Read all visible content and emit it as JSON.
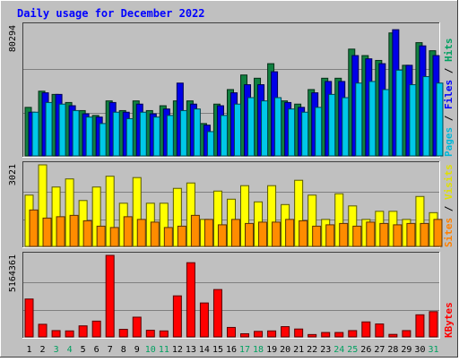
{
  "chart_data": {
    "type": "bar",
    "title": "Daily usage for December 2022",
    "categories": [
      "1",
      "2",
      "3",
      "4",
      "5",
      "6",
      "7",
      "8",
      "9",
      "10",
      "11",
      "12",
      "13",
      "14",
      "15",
      "16",
      "17",
      "18",
      "19",
      "20",
      "21",
      "22",
      "23",
      "24",
      "25",
      "26",
      "27",
      "28",
      "29",
      "30",
      "31"
    ],
    "weekend_days": [
      "3",
      "4",
      "10",
      "11",
      "17",
      "18",
      "24",
      "25",
      "31"
    ],
    "panels": [
      {
        "id": "hits-files-pages",
        "max_label": "80294",
        "ylim": [
          0,
          80294
        ],
        "right_labels": [
          {
            "text": "Pages",
            "color": "#00b8d8"
          },
          {
            "text": " / ",
            "color": "#000000"
          },
          {
            "text": "Files",
            "color": "#0000ff"
          },
          {
            "text": " / ",
            "color": "#000000"
          },
          {
            "text": "Hits",
            "color": "#00a060"
          }
        ],
        "series": [
          {
            "name": "Hits",
            "color": "#108040",
            "values": [
              30000,
              40000,
              38000,
              33000,
              28000,
              25000,
              34000,
              28000,
              34000,
              28000,
              31000,
              34000,
              34000,
              20000,
              32000,
              41000,
              50000,
              48000,
              57000,
              34000,
              32000,
              41000,
              48000,
              48000,
              66000,
              62000,
              59000,
              76000,
              56000,
              70000,
              65000
            ]
          },
          {
            "name": "Files",
            "color": "#0000e8",
            "values": [
              27000,
              39000,
              38000,
              31000,
              26000,
              24000,
              33000,
              27000,
              32000,
              26000,
              29000,
              45000,
              32000,
              19000,
              31000,
              39000,
              44000,
              44000,
              52000,
              33000,
              30000,
              39000,
              46000,
              46000,
              62000,
              60000,
              57000,
              78000,
              56000,
              68000,
              62000
            ]
          },
          {
            "name": "Pages",
            "color": "#00c8e8",
            "values": [
              27000,
              33000,
              32000,
              28000,
              24000,
              20000,
              27000,
              23000,
              27000,
              24000,
              25000,
              28000,
              29000,
              15000,
              25000,
              32000,
              36000,
              34000,
              36000,
              29000,
              27000,
              30000,
              38000,
              36000,
              45000,
              46000,
              41000,
              53000,
              44000,
              49000,
              45000
            ]
          }
        ]
      },
      {
        "id": "visits-sites",
        "max_label": "3021",
        "ylim": [
          0,
          3021
        ],
        "right_labels": [
          {
            "text": "Sites",
            "color": "#ff8000"
          },
          {
            "text": " / ",
            "color": "#000000"
          },
          {
            "text": "Visits",
            "color": "#e0e000"
          }
        ],
        "series": [
          {
            "name": "Visits",
            "color": "#ffff00",
            "values": [
              1900,
              3021,
              2200,
              2500,
              1700,
              2200,
              2600,
              1600,
              2550,
              1600,
              1600,
              2150,
              2350,
              1000,
              2050,
              1750,
              2250,
              1650,
              2250,
              1550,
              2450,
              1900,
              1000,
              1950,
              1500,
              1000,
              1300,
              1300,
              1000,
              1850,
              1250
            ]
          },
          {
            "name": "Sites",
            "color": "#ff8c00",
            "values": [
              1350,
              1050,
              1100,
              1150,
              950,
              750,
              700,
              1100,
              1000,
              900,
              700,
              750,
              1150,
              1000,
              800,
              1000,
              850,
              900,
              900,
              1000,
              950,
              750,
              800,
              850,
              750,
              900,
              850,
              800,
              850,
              850,
              1000
            ]
          }
        ]
      },
      {
        "id": "kbytes",
        "max_label": "5164361",
        "ylim": [
          0,
          5164361
        ],
        "right_labels": [
          {
            "text": "KBytes",
            "color": "#ff0000"
          }
        ],
        "series": [
          {
            "name": "KBytes",
            "color": "#ff0000",
            "values": [
              2400000,
              800000,
              400000,
              380000,
              700000,
              1000000,
              5164361,
              480000,
              1250000,
              420000,
              380000,
              2600000,
              4700000,
              2150000,
              3000000,
              600000,
              200000,
              350000,
              380000,
              650000,
              500000,
              150000,
              280000,
              280000,
              400000,
              950000,
              820000,
              160000,
              400000,
              1400000,
              1600000
            ]
          }
        ]
      }
    ]
  },
  "colors": {
    "background": "#c0c0c0",
    "title": "#0000ff",
    "weekend_label": "#00a060",
    "weekday_label": "#000000"
  }
}
